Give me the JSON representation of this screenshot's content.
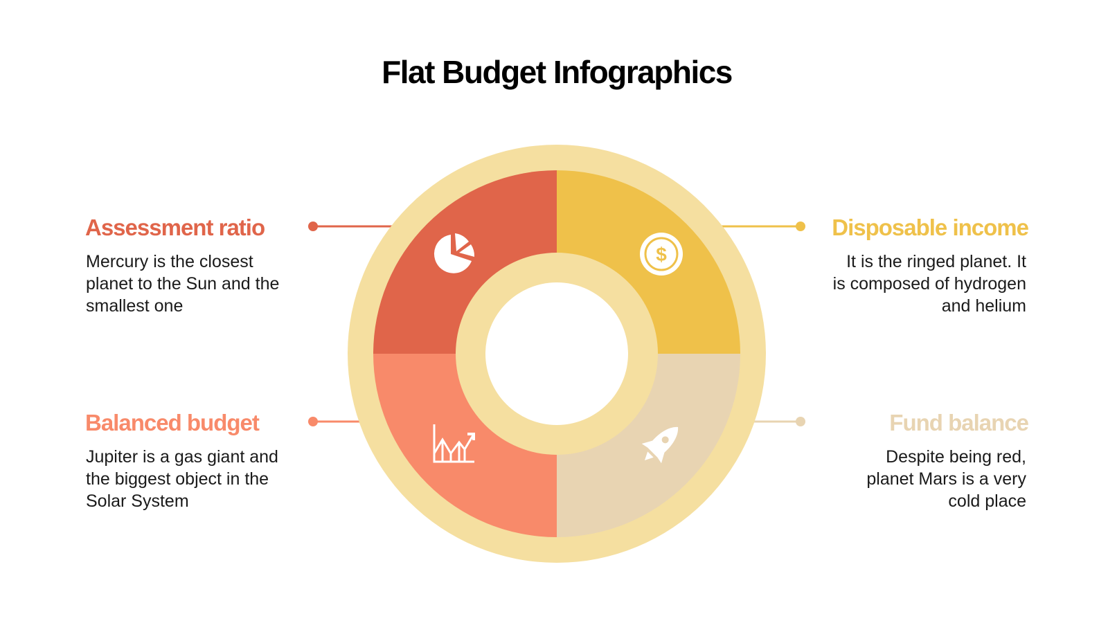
{
  "title": "Flat Budget Infographics",
  "items": [
    {
      "heading": "Assessment ratio",
      "color": "#E0654A",
      "lines": [
        "Mercury is the closest",
        "planet to the Sun and the",
        "smallest one"
      ]
    },
    {
      "heading": "Disposable income",
      "color": "#EFC14A",
      "lines": [
        "It is the ringed planet. It",
        "is composed of hydrogen",
        "and helium"
      ]
    },
    {
      "heading": "Balanced budget",
      "color": "#F88A6A",
      "lines": [
        "Jupiter is a gas giant and",
        "the biggest object in the",
        "Solar System"
      ]
    },
    {
      "heading": "Fund balance",
      "color": "#E8D4B2",
      "lines": [
        "Despite being red,",
        "planet Mars is a very",
        "cold place"
      ]
    }
  ]
}
